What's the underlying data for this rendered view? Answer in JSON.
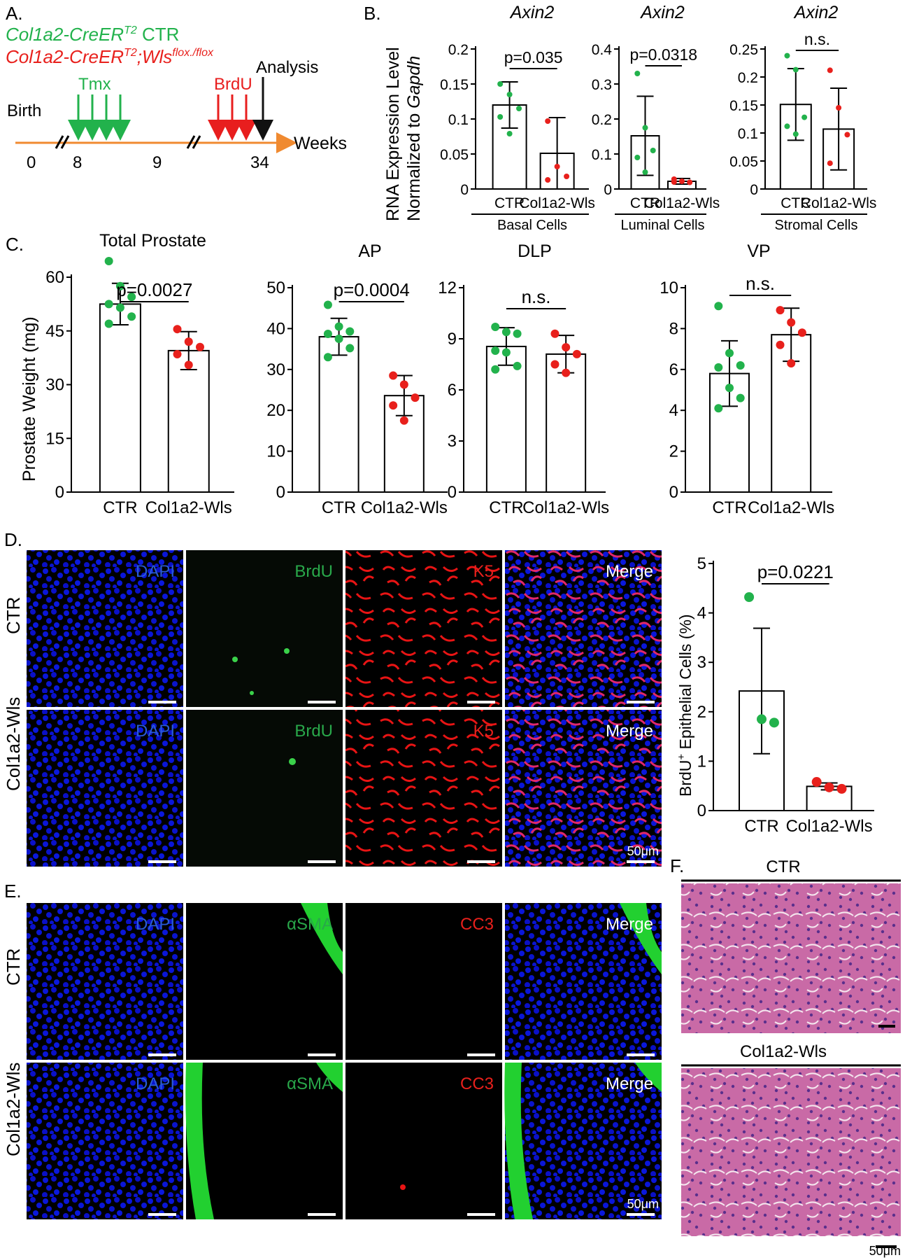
{
  "colors": {
    "ctr": "#22b24c",
    "wls": "#e8201c",
    "arrow_orange": "#f08a30",
    "brdu_red": "#e81e1e",
    "dapi": "#0a14d8",
    "micro_label_blue": "#2a5bd7",
    "micro_label_green": "#29a84a",
    "micro_label_red": "#e8201c",
    "he_pink": "#c35a9a"
  },
  "panelA": {
    "letter": "A.",
    "legend_ctr_main": "Col1a2-CreER",
    "legend_ctr_sup": "T2",
    "legend_ctr_rest": " CTR",
    "legend_wls_main": "Col1a2-CreER",
    "legend_wls_sup1": "T2",
    "legend_wls_mid": ";Wls",
    "legend_wls_sup2": "flox./flox",
    "tmx": "Tmx",
    "brdu": "BrdU",
    "analysis": "Analysis",
    "birth": "Birth",
    "weeks": "Weeks",
    "ticks": [
      "0",
      "8",
      "9",
      "34"
    ]
  },
  "panelB": {
    "letter": "B.",
    "ylabel1": "RNA Expression Level",
    "ylabel2_prefix": "Normalized to ",
    "ylabel2_gene": "Gapdh"
  },
  "panelC": {
    "letter": "C.",
    "ylabel": "Prostate Weight (mg)"
  },
  "panelD": {
    "letter": "D.",
    "rows": [
      "CTR",
      "Col1a2-Wls"
    ],
    "channels": [
      "DAPI",
      "BrdU",
      "K5",
      "Merge"
    ],
    "scale": "50μm",
    "ylabel_prefix": "BrdU",
    "ylabel_sup": "+",
    "ylabel_rest": " Epithelial Cells (%)"
  },
  "panelE": {
    "letter": "E.",
    "rows": [
      "CTR",
      "Col1a2-Wls"
    ],
    "channels": [
      "DAPI",
      "αSMA",
      "CC3",
      "Merge"
    ],
    "scale": "50μm"
  },
  "panelF": {
    "letter": "F.",
    "labels": [
      "CTR",
      "Col1a2-Wls"
    ],
    "scale": "50μm"
  },
  "chart_data": [
    {
      "id": "B1",
      "type": "bar",
      "title": "Axin2",
      "footer": "Basal Cells",
      "categories": [
        "CTR",
        "Col1a2-Wls"
      ],
      "values": [
        0.12,
        0.051
      ],
      "errors": [
        0.033,
        0.051
      ],
      "ylim": [
        0,
        0.2
      ],
      "yticks": [
        "0",
        "0.05",
        "0.1",
        "0.15",
        "0.2"
      ],
      "points": [
        [
          0.15,
          0.135,
          0.115,
          0.103,
          0.079
        ],
        [
          0.097,
          0.032,
          0.018,
          0.013
        ]
      ],
      "annotation": "p=0.035"
    },
    {
      "id": "B2",
      "type": "bar",
      "title": "Axin2",
      "footer": "Luminal Cells",
      "categories": [
        "CTR",
        "Col1a2-Wls"
      ],
      "values": [
        0.152,
        0.022
      ],
      "errors": [
        0.113,
        0.008
      ],
      "ylim": [
        0,
        0.4
      ],
      "yticks": [
        "0",
        "0.1",
        "0.2",
        "0.3",
        "0.4"
      ],
      "points": [
        [
          0.33,
          0.175,
          0.11,
          0.09,
          0.048
        ],
        [
          0.028,
          0.022,
          0.019,
          0.02
        ]
      ],
      "annotation": "p=0.0318"
    },
    {
      "id": "B3",
      "type": "bar",
      "title": "Axin2",
      "footer": "Stromal Cells",
      "categories": [
        "CTR",
        "Col1a2-Wls"
      ],
      "values": [
        0.151,
        0.107
      ],
      "errors": [
        0.064,
        0.073
      ],
      "ylim": [
        0,
        0.25
      ],
      "yticks": [
        "0",
        "0.05",
        "0.1",
        "0.15",
        "0.2",
        "0.25"
      ],
      "points": [
        [
          0.238,
          0.213,
          0.128,
          0.112,
          0.098
        ],
        [
          0.212,
          0.145,
          0.097,
          0.046
        ]
      ],
      "annotation": "n.s."
    },
    {
      "id": "C1",
      "type": "bar",
      "title": "Total Prostate",
      "categories": [
        "CTR",
        "Col1a2-Wls"
      ],
      "values": [
        52.5,
        39.5
      ],
      "errors": [
        5.8,
        5.3
      ],
      "ylim": [
        0,
        70
      ],
      "yticks": [
        "0",
        "15",
        "30",
        "45",
        "60"
      ],
      "points": [
        [
          64.5,
          57.5,
          54.5,
          52.5,
          51.5,
          49,
          47
        ],
        [
          45.5,
          42,
          40.5,
          38.5,
          35.5
        ]
      ],
      "annotation": "p=0.0027"
    },
    {
      "id": "C2",
      "type": "bar",
      "title": "AP",
      "categories": [
        "CTR",
        "Col1a2-Wls"
      ],
      "values": [
        38,
        23.6
      ],
      "errors": [
        4.5,
        4.9
      ],
      "ylim": [
        0,
        50
      ],
      "yticks": [
        "0",
        "10",
        "20",
        "30",
        "40",
        "50"
      ],
      "points": [
        [
          45.8,
          40.5,
          39.3,
          38.7,
          37.5,
          35.2,
          33
        ],
        [
          28.5,
          26.3,
          23.1,
          21.2,
          17.5
        ]
      ],
      "annotation": "p=0.0004"
    },
    {
      "id": "C3",
      "type": "bar",
      "title": "DLP",
      "categories": [
        "CTR",
        "Col1a2-Wls"
      ],
      "values": [
        8.55,
        8.1
      ],
      "errors": [
        1.1,
        1.1
      ],
      "ylim": [
        0,
        12
      ],
      "yticks": [
        "0",
        "3",
        "6",
        "9",
        "12"
      ],
      "points": [
        [
          9.7,
          9.4,
          9.3,
          8.3,
          8.2,
          7.4,
          7.2
        ],
        [
          9.3,
          8.5,
          8.1,
          7.5,
          7
        ]
      ],
      "annotation": "n.s."
    },
    {
      "id": "C4",
      "type": "bar",
      "title": "VP",
      "categories": [
        "CTR",
        "Col1a2-Wls"
      ],
      "values": [
        5.8,
        7.7
      ],
      "errors": [
        1.6,
        1.3
      ],
      "ylim": [
        0,
        10
      ],
      "yticks": [
        "0",
        "2",
        "4",
        "6",
        "8",
        "10"
      ],
      "points": [
        [
          9.1,
          6.8,
          6.2,
          6.1,
          5.1,
          4.6,
          4.1
        ],
        [
          8.9,
          8.3,
          7.8,
          7.2,
          6.3
        ]
      ],
      "annotation": "n.s."
    },
    {
      "id": "D",
      "type": "bar",
      "categories": [
        "CTR",
        "Col1a2-Wls"
      ],
      "values": [
        2.42,
        0.49
      ],
      "errors": [
        1.27,
        0.07
      ],
      "ylim": [
        0,
        5
      ],
      "yticks": [
        "0",
        "1",
        "2",
        "3",
        "4",
        "5"
      ],
      "points": [
        [
          4.32,
          1.85,
          1.78
        ],
        [
          0.58,
          0.47,
          0.44
        ]
      ],
      "annotation": "p=0.0221"
    }
  ]
}
